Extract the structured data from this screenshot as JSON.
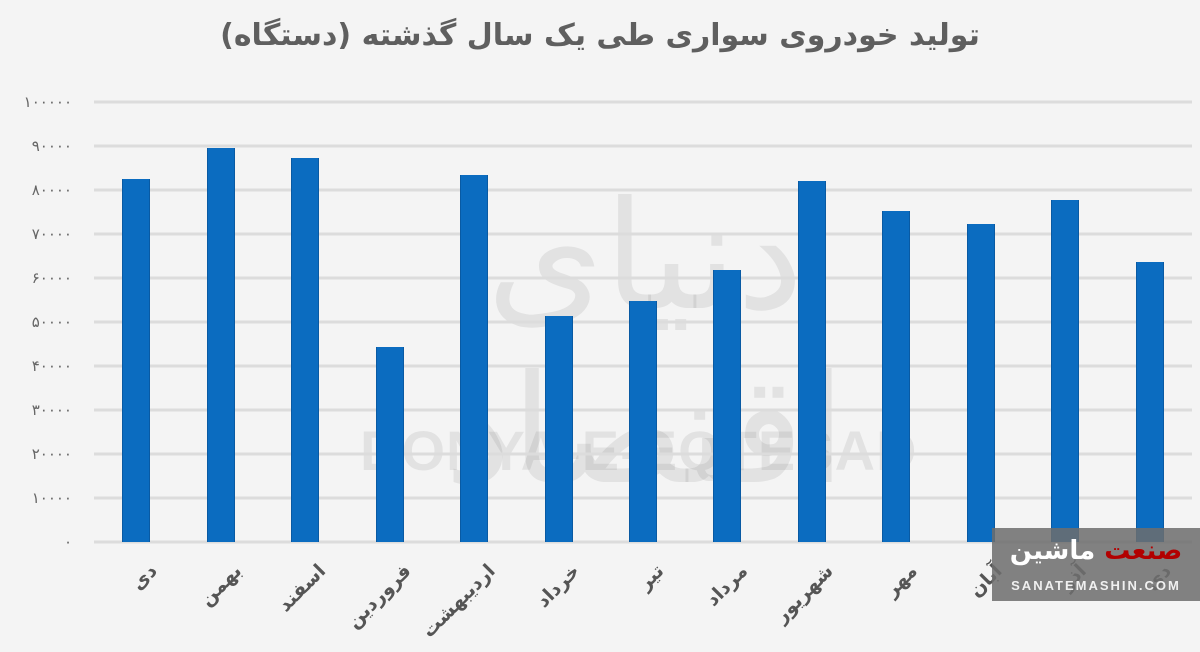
{
  "chart_data": {
    "type": "bar",
    "title": "تولید خودروی سواری طی یک سال گذشته (دستگاه)",
    "xlabel": "",
    "ylabel": "",
    "ylim": [
      0,
      100000
    ],
    "yticks": [
      0,
      10000,
      20000,
      30000,
      40000,
      50000,
      60000,
      70000,
      80000,
      90000,
      100000
    ],
    "ytick_labels": [
      "۰",
      "۱۰۰۰۰",
      "۲۰۰۰۰",
      "۳۰۰۰۰",
      "۴۰۰۰۰",
      "۵۰۰۰۰",
      "۶۰۰۰۰",
      "۷۰۰۰۰",
      "۸۰۰۰۰",
      "۹۰۰۰۰",
      "۱۰۰۰۰۰"
    ],
    "grid": true,
    "legend": null,
    "categories": [
      "دی",
      "بهمن",
      "اسفند",
      "فروردین",
      "اردیبهشت",
      "خرداد",
      "تیر",
      "مرداد",
      "شهریور",
      "مهر",
      "آبان",
      "آذر",
      "دی"
    ],
    "values": [
      82500,
      89500,
      87300,
      44300,
      83400,
      51400,
      54800,
      61800,
      82000,
      75200,
      72300,
      77700,
      63600
    ],
    "bar_color": "#0b6cc0"
  },
  "watermark": {
    "latin": "DONYA-E-EQTESAD",
    "persian": "دنیای اقتصاد"
  },
  "overlay_logo": {
    "brand_red": "صنعت",
    "brand_white": "ماشین",
    "url": "SANATEMASHIN.COM",
    "red_color": "#b20000"
  },
  "colors": {
    "background": "#f4f4f4",
    "gridline": "#dcdcdc",
    "title": "#5f5f5f",
    "bar": "#0b6cc0"
  }
}
